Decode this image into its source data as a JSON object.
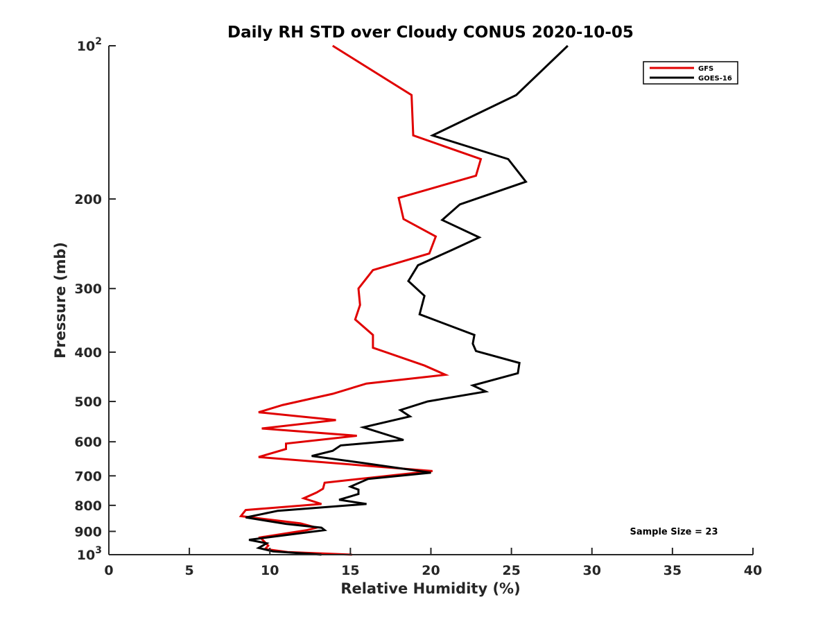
{
  "chart_data": {
    "type": "line",
    "title": "Daily RH STD over Cloudy CONUS 2020-10-05",
    "xlabel": "Relative Humidity (%)",
    "ylabel": "Pressure (mb)",
    "xlim": [
      0,
      40
    ],
    "ylim": [
      100,
      1000
    ],
    "yscale": "log",
    "y_reversed": true,
    "grid": false,
    "x_ticks": [
      0,
      5,
      10,
      15,
      20,
      25,
      30,
      35,
      40
    ],
    "x_tick_labels": [
      "0",
      "5",
      "10",
      "15",
      "20",
      "25",
      "30",
      "35",
      "40"
    ],
    "y_ticks": [
      100,
      200,
      300,
      400,
      500,
      600,
      700,
      800,
      900,
      1000
    ],
    "y_tick_labels": [
      {
        "base": "10",
        "exp": "2"
      },
      {
        "base": "200",
        "exp": ""
      },
      {
        "base": "300",
        "exp": ""
      },
      {
        "base": "400",
        "exp": ""
      },
      {
        "base": "500",
        "exp": ""
      },
      {
        "base": "600",
        "exp": ""
      },
      {
        "base": "700",
        "exp": ""
      },
      {
        "base": "800",
        "exp": ""
      },
      {
        "base": "900",
        "exp": ""
      },
      {
        "base": "10",
        "exp": "3"
      }
    ],
    "legend_position": "top-right",
    "annotation": "Sample Size = 23",
    "series": [
      {
        "name": "GFS",
        "color": "#e00000",
        "points": [
          [
            13.9,
            100
          ],
          [
            18.8,
            125
          ],
          [
            18.9,
            150
          ],
          [
            23.1,
            167
          ],
          [
            22.8,
            180
          ],
          [
            18.0,
            199
          ],
          [
            18.3,
            219
          ],
          [
            20.3,
            237
          ],
          [
            19.9,
            256
          ],
          [
            16.4,
            276
          ],
          [
            15.5,
            300
          ],
          [
            15.6,
            323
          ],
          [
            15.3,
            345
          ],
          [
            16.4,
            370
          ],
          [
            16.4,
            392
          ],
          [
            19.6,
            425
          ],
          [
            20.9,
            443
          ],
          [
            16.0,
            461
          ],
          [
            13.9,
            483
          ],
          [
            10.8,
            508
          ],
          [
            9.3,
            525
          ],
          [
            14.1,
            544
          ],
          [
            9.5,
            565
          ],
          [
            15.4,
            584
          ],
          [
            11.0,
            605
          ],
          [
            11.0,
            620
          ],
          [
            9.3,
            643
          ],
          [
            20.1,
            685
          ],
          [
            13.4,
            722
          ],
          [
            13.3,
            742
          ],
          [
            12.9,
            755
          ],
          [
            12.1,
            775
          ],
          [
            13.2,
            795
          ],
          [
            8.5,
            817
          ],
          [
            8.2,
            840
          ],
          [
            11.9,
            868
          ],
          [
            12.9,
            885
          ],
          [
            12.3,
            895
          ],
          [
            9.4,
            925
          ],
          [
            9.9,
            960
          ],
          [
            9.7,
            975
          ],
          [
            11.1,
            988
          ],
          [
            15.1,
            1000
          ]
        ]
      },
      {
        "name": "GOES-16",
        "color": "#000000",
        "points": [
          [
            28.5,
            100
          ],
          [
            25.3,
            125
          ],
          [
            20.1,
            150
          ],
          [
            24.8,
            167
          ],
          [
            25.9,
            185
          ],
          [
            21.8,
            205
          ],
          [
            20.7,
            220
          ],
          [
            23.0,
            238
          ],
          [
            21.3,
            252
          ],
          [
            19.2,
            270
          ],
          [
            18.6,
            290
          ],
          [
            19.6,
            310
          ],
          [
            19.3,
            337
          ],
          [
            22.7,
            370
          ],
          [
            22.6,
            385
          ],
          [
            22.8,
            398
          ],
          [
            25.5,
            420
          ],
          [
            25.4,
            440
          ],
          [
            22.6,
            465
          ],
          [
            23.4,
            478
          ],
          [
            19.8,
            500
          ],
          [
            18.1,
            520
          ],
          [
            18.7,
            535
          ],
          [
            15.8,
            562
          ],
          [
            18.3,
            595
          ],
          [
            14.4,
            610
          ],
          [
            13.9,
            625
          ],
          [
            12.6,
            640
          ],
          [
            15.7,
            660
          ],
          [
            20.0,
            690
          ],
          [
            16.1,
            710
          ],
          [
            15.0,
            735
          ],
          [
            15.5,
            745
          ],
          [
            15.5,
            760
          ],
          [
            14.3,
            780
          ],
          [
            16.0,
            795
          ],
          [
            10.5,
            820
          ],
          [
            8.5,
            845
          ],
          [
            11.0,
            870
          ],
          [
            13.2,
            885
          ],
          [
            13.4,
            895
          ],
          [
            8.7,
            935
          ],
          [
            9.8,
            950
          ],
          [
            9.3,
            970
          ],
          [
            10.2,
            985
          ],
          [
            13.2,
            1000
          ]
        ]
      }
    ]
  }
}
